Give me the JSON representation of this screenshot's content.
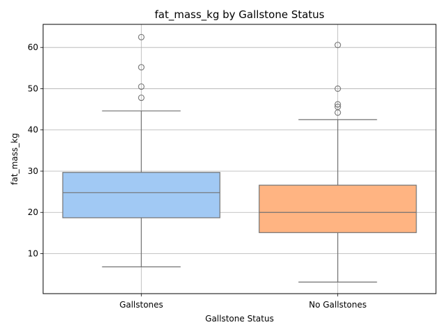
{
  "chart_data": {
    "type": "box",
    "title": "fat_mass_kg by Gallstone Status",
    "xlabel": "Gallstone Status",
    "ylabel": "fat_mass_kg",
    "categories": [
      "Gallstones",
      "No Gallstones"
    ],
    "ylim": [
      0.3,
      65.6
    ],
    "yticks": [
      10,
      20,
      30,
      40,
      50,
      60
    ],
    "grid": true,
    "boxes": [
      {
        "category": "Gallstones",
        "color": "#a1c9f4",
        "whisker_low": 6.8,
        "q1": 18.7,
        "median": 24.8,
        "q3": 29.7,
        "whisker_high": 44.6,
        "outliers": [
          47.8,
          50.5,
          55.2,
          62.5
        ]
      },
      {
        "category": "No Gallstones",
        "color": "#ffb482",
        "whisker_low": 3.1,
        "q1": 15.1,
        "median": 20.0,
        "q3": 26.6,
        "whisker_high": 42.5,
        "outliers": [
          44.2,
          45.6,
          46.2,
          50.0,
          60.6
        ]
      }
    ]
  }
}
